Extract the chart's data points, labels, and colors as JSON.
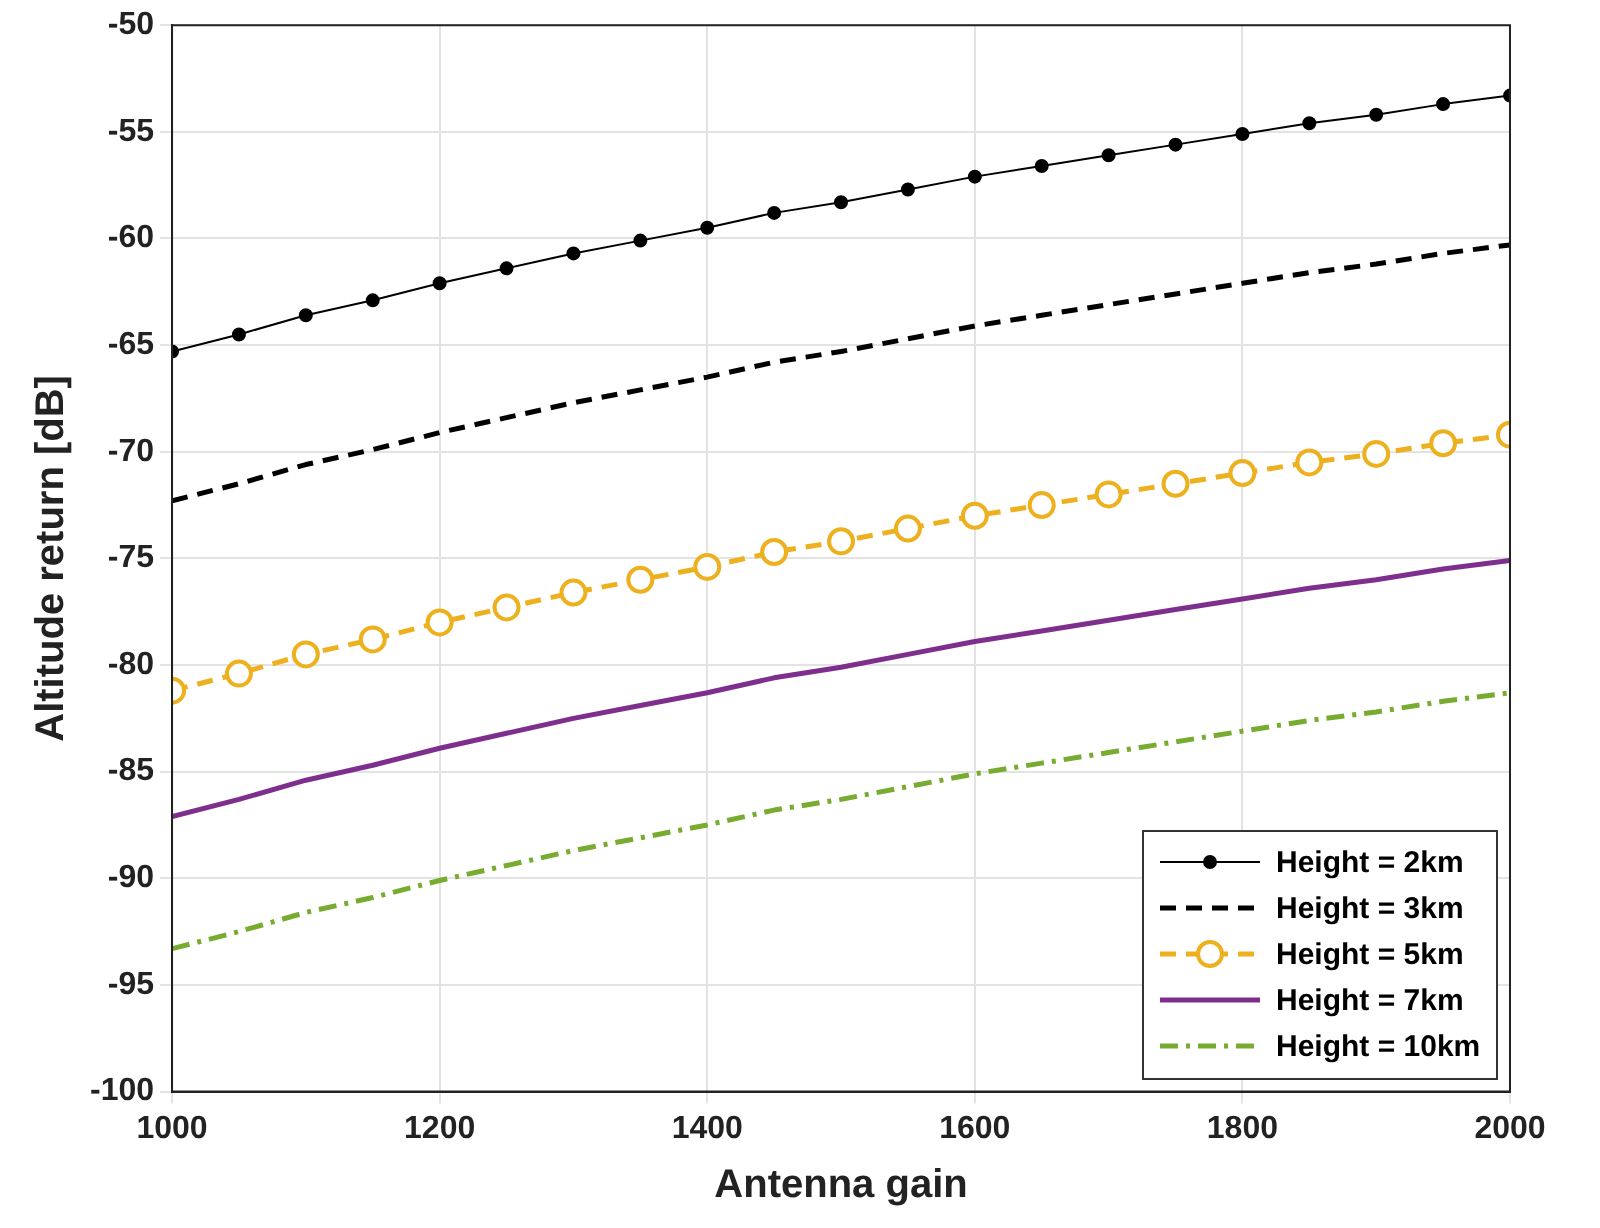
{
  "chart_data": {
    "type": "line",
    "xlabel": "Antenna gain",
    "ylabel": "Altitude return [dB]",
    "x": [
      1000,
      1050,
      1100,
      1150,
      1200,
      1250,
      1300,
      1350,
      1400,
      1450,
      1500,
      1550,
      1600,
      1650,
      1700,
      1750,
      1800,
      1850,
      1900,
      1950,
      2000
    ],
    "xlim": [
      1000,
      2000
    ],
    "xticks": [
      1000,
      1200,
      1400,
      1600,
      1800,
      2000
    ],
    "ylim": [
      -100,
      -50
    ],
    "yticks": [
      -100,
      -95,
      -90,
      -85,
      -80,
      -75,
      -70,
      -65,
      -60,
      -55,
      -50
    ],
    "grid": true,
    "legend": "bottom right",
    "series": [
      {
        "name": "Height = 2km",
        "color": "#000000",
        "line_style": "solid",
        "marker": "circle",
        "values": [
          -65.3,
          -64.5,
          -63.6,
          -62.9,
          -62.1,
          -61.4,
          -60.7,
          -60.1,
          -59.5,
          -58.8,
          -58.3,
          -57.7,
          -57.1,
          -56.6,
          -56.1,
          -55.6,
          -55.1,
          -54.6,
          -54.2,
          -53.7,
          -53.3
        ]
      },
      {
        "name": "Height = 3km",
        "color": "#000000",
        "line_style": "dashed",
        "marker": "none",
        "values": [
          -72.3,
          -71.5,
          -70.6,
          -69.9,
          -69.1,
          -68.4,
          -67.7,
          -67.1,
          -66.5,
          -65.8,
          -65.3,
          -64.7,
          -64.1,
          -63.6,
          -63.1,
          -62.6,
          -62.1,
          -61.6,
          -61.2,
          -60.7,
          -60.3
        ]
      },
      {
        "name": "Height = 5km",
        "color": "#edb120",
        "line_style": "dashed",
        "marker": "circle",
        "values": [
          -81.2,
          -80.4,
          -79.5,
          -78.8,
          -78.0,
          -77.3,
          -76.6,
          -76.0,
          -75.4,
          -74.7,
          -74.2,
          -73.6,
          -73.0,
          -72.5,
          -72.0,
          -71.5,
          -71.0,
          -70.5,
          -70.1,
          -69.6,
          -69.2
        ]
      },
      {
        "name": "Height = 7km",
        "color": "#7e2f8e",
        "line_style": "solid",
        "marker": "none",
        "values": [
          -87.1,
          -86.3,
          -85.4,
          -84.7,
          -83.9,
          -83.2,
          -82.5,
          -81.9,
          -81.3,
          -80.6,
          -80.1,
          -79.5,
          -78.9,
          -78.4,
          -77.9,
          -77.4,
          -76.9,
          -76.4,
          -76.0,
          -75.5,
          -75.1
        ]
      },
      {
        "name": "Height = 10km",
        "color": "#77ac30",
        "line_style": "dashdot",
        "marker": "none",
        "values": [
          -93.3,
          -92.5,
          -91.6,
          -90.9,
          -90.1,
          -89.4,
          -88.7,
          -88.1,
          -87.5,
          -86.8,
          -86.3,
          -85.7,
          -85.1,
          -84.6,
          -84.1,
          -83.6,
          -83.1,
          -82.6,
          -82.2,
          -81.7,
          -81.3
        ]
      }
    ]
  }
}
